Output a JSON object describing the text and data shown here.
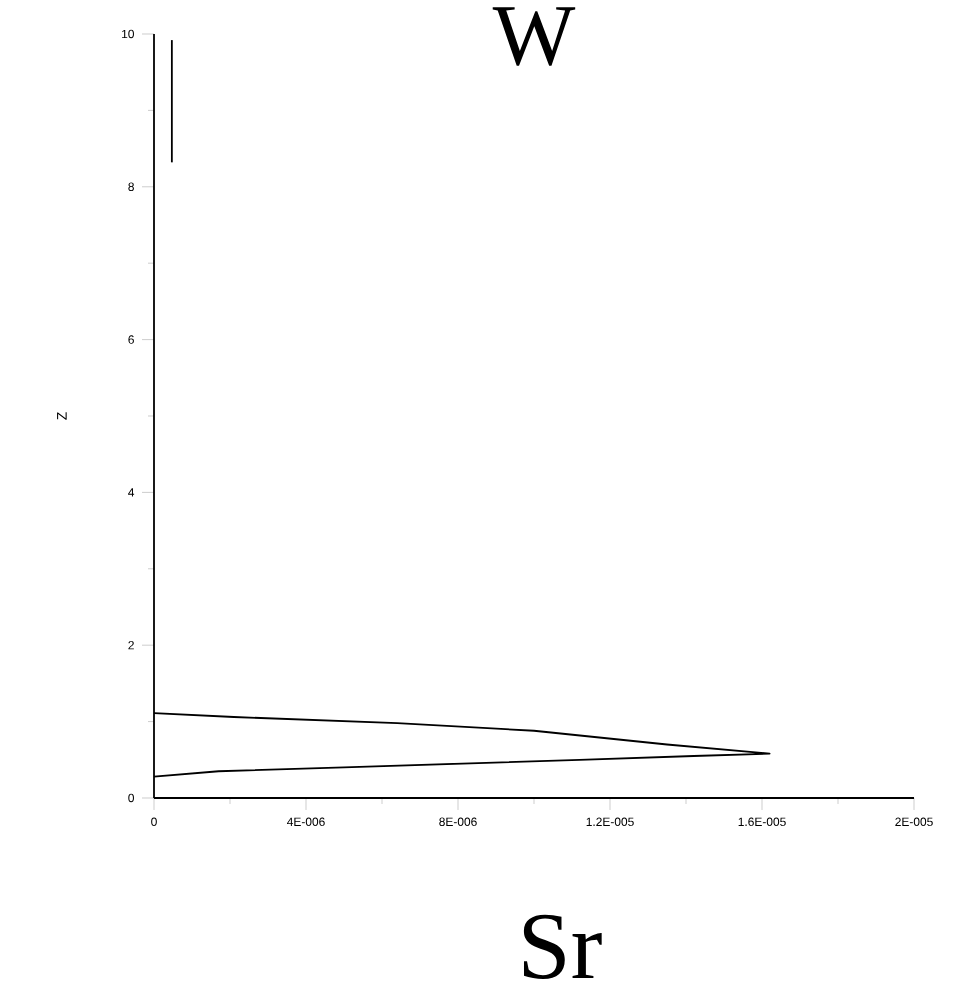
{
  "chart_data": [
    {
      "type": "line",
      "title": "W",
      "ylabel": "Z",
      "xlim": [
        0,
        2e-05
      ],
      "ylim": [
        0,
        10
      ],
      "xticks": [
        0,
        {
          "value": 4e-06,
          "label": "4E-006"
        },
        {
          "value": 8e-06,
          "label": "8E-006"
        },
        {
          "value": 1.2e-05,
          "label": "1.2E-005"
        },
        {
          "value": 1.6e-05,
          "label": "1.6E-005"
        },
        {
          "value": 2e-05,
          "label": "2E-005"
        }
      ],
      "yticks": [
        0,
        2,
        4,
        6,
        8,
        10
      ],
      "series": [
        {
          "color": "#000000",
          "x": [
            4.7e-07,
            4.7e-07
          ],
          "values": [
            9.92,
            8.32
          ]
        },
        {
          "color": "#000000",
          "x": [
            0,
            2.1e-06,
            6.4e-06,
            1e-05,
            1.35e-05,
            1.62e-05,
            1.42e-05,
            1.12e-05,
            5e-06,
            1.7e-06,
            0
          ],
          "values": [
            1.11,
            1.06,
            0.98,
            0.88,
            0.7,
            0.58,
            0.55,
            0.5,
            0.4,
            0.35,
            0.28
          ]
        }
      ],
      "grid": false,
      "marker": "none",
      "line_style": "solid"
    },
    {
      "type": "other",
      "title": "Sr"
    }
  ]
}
